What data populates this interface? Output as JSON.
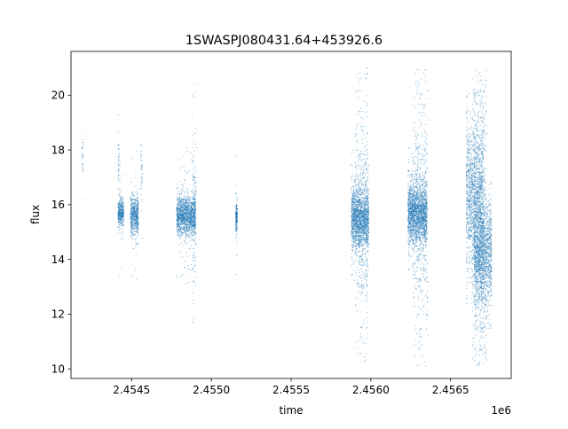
{
  "chart_data": {
    "type": "scatter",
    "title": "1SWASPJ080431.64+453926.6",
    "xlabel": "time",
    "ylabel": "flux",
    "x_offset_label": "1e6",
    "xlim": [
      2454120,
      2456880
    ],
    "ylim": [
      9.65,
      21.6
    ],
    "x_ticks": [
      2454500,
      2455000,
      2455500,
      2456000,
      2456500
    ],
    "x_tick_labels": [
      "2.4545",
      "2.4550",
      "2.4555",
      "2.4560",
      "2.4565"
    ],
    "y_ticks": [
      10,
      12,
      14,
      16,
      18,
      20
    ],
    "y_tick_labels": [
      "10",
      "12",
      "14",
      "16",
      "18",
      "20"
    ],
    "grid": false,
    "legend": "none",
    "marker_color": "#1f77b4",
    "point_groups": [
      {
        "x_center": 2454190,
        "x_spread": 3,
        "y_center": 17.9,
        "y_spread": 0.35,
        "n": 30,
        "tail": 0.2
      },
      {
        "x_center": 2454415,
        "x_spread": 4,
        "y_center": 17.3,
        "y_spread": 0.6,
        "n": 30,
        "tail": 0.2
      },
      {
        "x_center": 2454430,
        "x_spread": 18,
        "y_center": 15.7,
        "y_spread": 0.25,
        "n": 400,
        "tail": 0.05
      },
      {
        "x_center": 2454515,
        "x_spread": 25,
        "y_center": 15.6,
        "y_spread": 0.35,
        "n": 600,
        "tail": 0.05
      },
      {
        "x_center": 2454560,
        "x_spread": 5,
        "y_center": 17.2,
        "y_spread": 0.5,
        "n": 40,
        "tail": 0.15
      },
      {
        "x_center": 2454840,
        "x_spread": 60,
        "y_center": 15.6,
        "y_spread": 0.35,
        "n": 1500,
        "tail": 0.05
      },
      {
        "x_center": 2454890,
        "x_spread": 12,
        "y_center": 16.0,
        "y_spread": 1.5,
        "n": 120,
        "tail": 0.3
      },
      {
        "x_center": 2455155,
        "x_spread": 5,
        "y_center": 15.6,
        "y_spread": 0.3,
        "n": 200,
        "tail": 0.03
      },
      {
        "x_center": 2455930,
        "x_spread": 55,
        "y_center": 15.5,
        "y_spread": 0.55,
        "n": 1800,
        "tail": 0.12
      },
      {
        "x_center": 2455940,
        "x_spread": 40,
        "y_center": 15.5,
        "y_spread": 2.5,
        "n": 400,
        "tail": 0.5
      },
      {
        "x_center": 2456290,
        "x_spread": 60,
        "y_center": 15.7,
        "y_spread": 0.55,
        "n": 2000,
        "tail": 0.12
      },
      {
        "x_center": 2456310,
        "x_spread": 45,
        "y_center": 15.6,
        "y_spread": 2.6,
        "n": 500,
        "tail": 0.5
      },
      {
        "x_center": 2456650,
        "x_spread": 55,
        "y_center": 16.3,
        "y_spread": 1.3,
        "n": 1500,
        "tail": 0.15
      },
      {
        "x_center": 2456700,
        "x_spread": 55,
        "y_center": 14.2,
        "y_spread": 0.9,
        "n": 1500,
        "tail": 0.15
      },
      {
        "x_center": 2456680,
        "x_spread": 45,
        "y_center": 15.5,
        "y_spread": 2.8,
        "n": 700,
        "tail": 0.5
      }
    ]
  }
}
